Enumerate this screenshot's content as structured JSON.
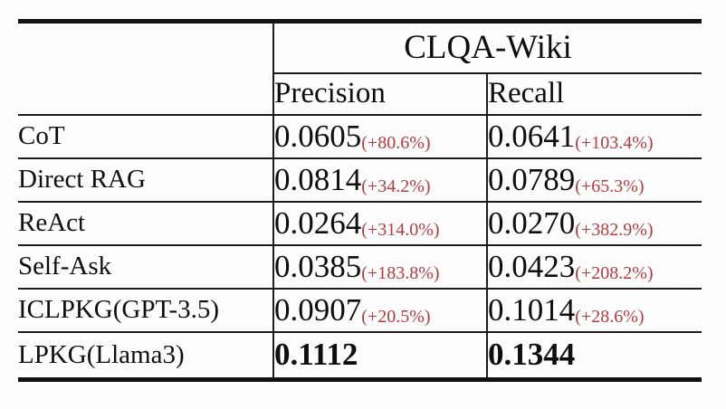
{
  "table": {
    "group_header": "CLQA-Wiki",
    "col_headers": {
      "precision": "Precision",
      "recall": "Recall"
    },
    "rows": [
      {
        "method": "CoT",
        "precision": "0.0605",
        "precision_delta": "(+80.6%)",
        "recall": "0.0641",
        "recall_delta": "(+103.4%)"
      },
      {
        "method": "Direct RAG",
        "precision": "0.0814",
        "precision_delta": "(+34.2%)",
        "recall": "0.0789",
        "recall_delta": "(+65.3%)"
      },
      {
        "method": "ReAct",
        "precision": "0.0264",
        "precision_delta": "(+314.0%)",
        "recall": "0.0270",
        "recall_delta": "(+382.9%)"
      },
      {
        "method": "Self-Ask",
        "precision": "0.0385",
        "precision_delta": "(+183.8%)",
        "recall": "0.0423",
        "recall_delta": "(+208.2%)"
      },
      {
        "method": "ICLPKG(GPT-3.5)",
        "precision": "0.0907",
        "precision_delta": "(+20.5%)",
        "recall": "0.1014",
        "recall_delta": "(+28.6%)"
      },
      {
        "method": "LPKG(Llama3)",
        "precision": "0.1112",
        "precision_delta": "",
        "recall": "0.1344",
        "recall_delta": ""
      }
    ],
    "colors": {
      "delta_red": "#b23b40",
      "rule_black": "#121212"
    }
  }
}
